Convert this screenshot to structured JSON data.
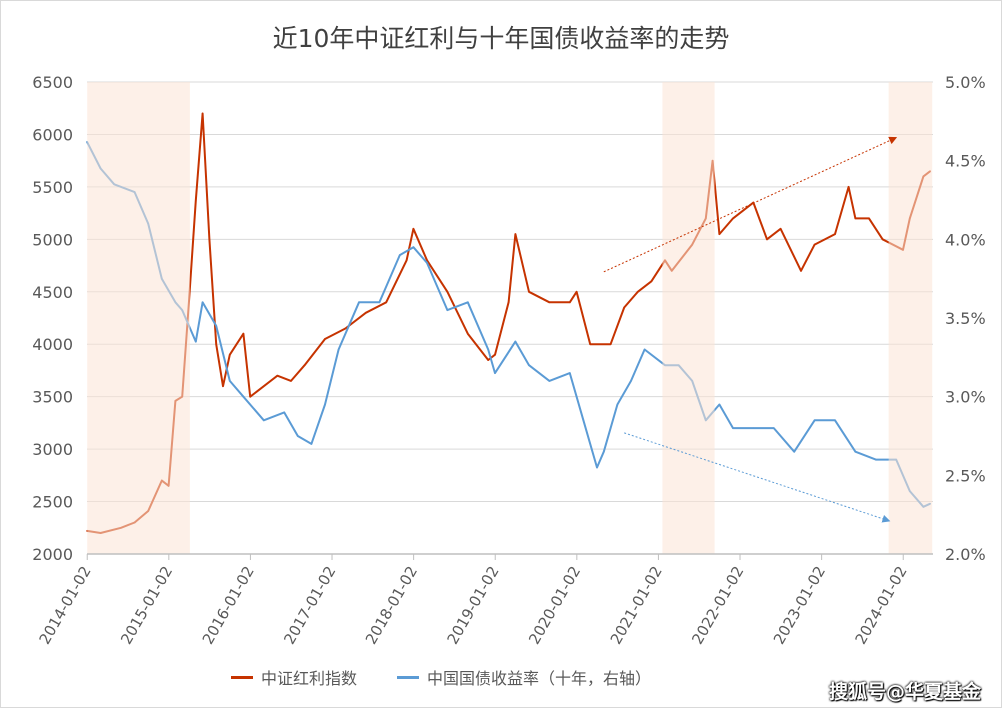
{
  "chart_data": {
    "type": "line",
    "title": "近10年中证红利与十年国债收益率的走势",
    "x_ticks": [
      "2014-01-02",
      "2015-01-02",
      "2016-01-02",
      "2017-01-02",
      "2018-01-02",
      "2019-01-02",
      "2020-01-02",
      "2021-01-02",
      "2022-01-02",
      "2023-01-02",
      "2024-01-02"
    ],
    "y_left": {
      "range": [
        2000,
        6500
      ],
      "ticks": [
        "2000",
        "2500",
        "3000",
        "3500",
        "4000",
        "4500",
        "5000",
        "5500",
        "6000",
        "6500"
      ]
    },
    "y_right": {
      "range": [
        2.0,
        5.0
      ],
      "ticks": [
        "2.0%",
        "2.5%",
        "3.0%",
        "3.5%",
        "4.0%",
        "4.5%",
        "5.0%"
      ]
    },
    "grid": "horizontal",
    "legend_position": "bottom",
    "shaded_periods": [
      [
        "2014-01-02",
        "2015-04-05"
      ],
      [
        "2021-01-20",
        "2021-09-10"
      ],
      [
        "2023-10-28",
        "2024-05-10"
      ]
    ],
    "shade_color": "#fbe4d5",
    "series": [
      {
        "name": "中证红利指数",
        "axis": "left",
        "color": "#c63300",
        "x": [
          "2014-01",
          "2014-03",
          "2014-06",
          "2014-08",
          "2014-10",
          "2014-12",
          "2015-01",
          "2015-02",
          "2015-03",
          "2015-04",
          "2015-05",
          "2015-06",
          "2015-07",
          "2015-08",
          "2015-09",
          "2015-10",
          "2015-12",
          "2016-01",
          "2016-02",
          "2016-05",
          "2016-07",
          "2016-09",
          "2016-12",
          "2017-03",
          "2017-06",
          "2017-09",
          "2017-12",
          "2018-01",
          "2018-03",
          "2018-06",
          "2018-09",
          "2018-12",
          "2019-01",
          "2019-03",
          "2019-04",
          "2019-06",
          "2019-09",
          "2019-12",
          "2020-01",
          "2020-03",
          "2020-06",
          "2020-08",
          "2020-10",
          "2020-12",
          "2021-02",
          "2021-03",
          "2021-06",
          "2021-08",
          "2021-09",
          "2021-10",
          "2021-12",
          "2022-03",
          "2022-05",
          "2022-07",
          "2022-10",
          "2022-12",
          "2023-03",
          "2023-05",
          "2023-06",
          "2023-08",
          "2023-10",
          "2024-01",
          "2024-02",
          "2024-04",
          "2024-05"
        ],
        "values": [
          2220,
          2200,
          2250,
          2300,
          2410,
          2700,
          2650,
          3460,
          3500,
          4410,
          5370,
          6200,
          5000,
          4000,
          3600,
          3900,
          4100,
          3500,
          3550,
          3700,
          3650,
          3800,
          4050,
          4150,
          4300,
          4400,
          4800,
          5100,
          4800,
          4500,
          4100,
          3850,
          3900,
          4400,
          5050,
          4500,
          4400,
          4400,
          4500,
          4000,
          4000,
          4350,
          4500,
          4600,
          4800,
          4700,
          4950,
          5200,
          5750,
          5050,
          5200,
          5350,
          5000,
          5100,
          4700,
          4950,
          5050,
          5500,
          5200,
          5200,
          5000,
          4900,
          5200,
          5600,
          5650
        ]
      },
      {
        "name": "中国国债收益率（十年，右轴）",
        "axis": "right",
        "color": "#5b9bd5",
        "x": [
          "2014-01",
          "2014-03",
          "2014-05",
          "2014-08",
          "2014-10",
          "2014-12",
          "2015-02",
          "2015-03",
          "2015-05",
          "2015-06",
          "2015-08",
          "2015-10",
          "2015-12",
          "2016-03",
          "2016-06",
          "2016-08",
          "2016-10",
          "2016-12",
          "2017-02",
          "2017-05",
          "2017-08",
          "2017-11",
          "2018-01",
          "2018-03",
          "2018-06",
          "2018-09",
          "2018-12",
          "2019-01",
          "2019-04",
          "2019-06",
          "2019-09",
          "2019-12",
          "2020-02",
          "2020-04",
          "2020-05",
          "2020-07",
          "2020-09",
          "2020-11",
          "2021-02",
          "2021-04",
          "2021-06",
          "2021-08",
          "2021-10",
          "2021-12",
          "2022-03",
          "2022-06",
          "2022-09",
          "2022-12",
          "2023-03",
          "2023-06",
          "2023-09",
          "2023-12",
          "2024-02",
          "2024-04",
          "2024-05"
        ],
        "values": [
          4.62,
          4.45,
          4.35,
          4.3,
          4.1,
          3.75,
          3.6,
          3.55,
          3.35,
          3.6,
          3.45,
          3.1,
          3.0,
          2.85,
          2.9,
          2.75,
          2.7,
          2.95,
          3.3,
          3.6,
          3.6,
          3.9,
          3.95,
          3.85,
          3.55,
          3.6,
          3.3,
          3.15,
          3.35,
          3.2,
          3.1,
          3.15,
          2.85,
          2.55,
          2.65,
          2.95,
          3.1,
          3.3,
          3.2,
          3.2,
          3.1,
          2.85,
          2.95,
          2.8,
          2.8,
          2.8,
          2.65,
          2.85,
          2.85,
          2.65,
          2.6,
          2.6,
          2.4,
          2.3,
          2.32
        ]
      }
    ],
    "trend_arrows": [
      {
        "axis": "left",
        "color": "#c63300",
        "from": [
          "2020-05",
          4690
        ],
        "to": [
          "2023-12",
          5970
        ]
      },
      {
        "axis": "right",
        "color": "#5b9bd5",
        "from": [
          "2020-08",
          2.77
        ],
        "to": [
          "2023-11",
          2.21
        ]
      }
    ]
  },
  "legend": {
    "item1": "中证红利指数",
    "item2": "中国国债收益率（十年，右轴）"
  },
  "watermark": "搜狐号@华夏基金"
}
